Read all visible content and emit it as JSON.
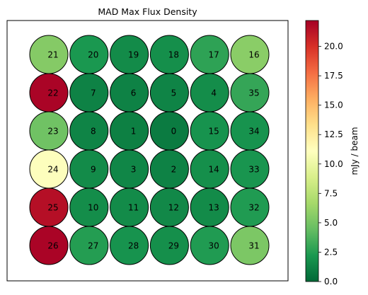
{
  "chart_data": {
    "type": "heatmap",
    "title": "MAD Max Flux Density",
    "colorbar": {
      "label": "mJy / beam",
      "range": [
        0.0,
        22.2
      ],
      "colormap": "RdYlGn_r",
      "ticks": [
        0.0,
        2.5,
        5.0,
        7.5,
        10.0,
        12.5,
        15.0,
        17.5,
        20.0
      ],
      "tick_labels": [
        "0.0",
        "2.5",
        "5.0",
        "7.5",
        "10.0",
        "12.5",
        "15.0",
        "17.5",
        "20.0"
      ]
    },
    "grid": {
      "rows": 6,
      "cols": 6
    },
    "beams": [
      {
        "label": "21",
        "row": 0,
        "col": 0,
        "value": 5.5
      },
      {
        "label": "20",
        "row": 0,
        "col": 1,
        "value": 2.2
      },
      {
        "label": "19",
        "row": 0,
        "col": 2,
        "value": 1.6
      },
      {
        "label": "18",
        "row": 0,
        "col": 3,
        "value": 1.8
      },
      {
        "label": "17",
        "row": 0,
        "col": 4,
        "value": 2.8
      },
      {
        "label": "16",
        "row": 0,
        "col": 5,
        "value": 5.7
      },
      {
        "label": "22",
        "row": 1,
        "col": 0,
        "value": 22.0
      },
      {
        "label": "7",
        "row": 1,
        "col": 1,
        "value": 1.2
      },
      {
        "label": "6",
        "row": 1,
        "col": 2,
        "value": 1.2
      },
      {
        "label": "5",
        "row": 1,
        "col": 3,
        "value": 1.3
      },
      {
        "label": "4",
        "row": 1,
        "col": 4,
        "value": 1.7
      },
      {
        "label": "35",
        "row": 1,
        "col": 5,
        "value": 3.0
      },
      {
        "label": "23",
        "row": 2,
        "col": 0,
        "value": 4.8
      },
      {
        "label": "8",
        "row": 2,
        "col": 1,
        "value": 1.3
      },
      {
        "label": "1",
        "row": 2,
        "col": 2,
        "value": 1.1
      },
      {
        "label": "0",
        "row": 2,
        "col": 3,
        "value": 0.9
      },
      {
        "label": "15",
        "row": 2,
        "col": 4,
        "value": 2.0
      },
      {
        "label": "34",
        "row": 2,
        "col": 5,
        "value": 2.0
      },
      {
        "label": "24",
        "row": 3,
        "col": 0,
        "value": 11.0
      },
      {
        "label": "9",
        "row": 3,
        "col": 1,
        "value": 1.6
      },
      {
        "label": "3",
        "row": 3,
        "col": 2,
        "value": 1.4
      },
      {
        "label": "2",
        "row": 3,
        "col": 3,
        "value": 1.2
      },
      {
        "label": "14",
        "row": 3,
        "col": 4,
        "value": 1.8
      },
      {
        "label": "33",
        "row": 3,
        "col": 5,
        "value": 2.1
      },
      {
        "label": "25",
        "row": 4,
        "col": 0,
        "value": 21.5
      },
      {
        "label": "10",
        "row": 4,
        "col": 1,
        "value": 1.7
      },
      {
        "label": "11",
        "row": 4,
        "col": 2,
        "value": 1.6
      },
      {
        "label": "12",
        "row": 4,
        "col": 3,
        "value": 1.5
      },
      {
        "label": "13",
        "row": 4,
        "col": 4,
        "value": 1.6
      },
      {
        "label": "32",
        "row": 4,
        "col": 5,
        "value": 2.4
      },
      {
        "label": "26",
        "row": 5,
        "col": 0,
        "value": 22.0
      },
      {
        "label": "27",
        "row": 5,
        "col": 1,
        "value": 2.5
      },
      {
        "label": "28",
        "row": 5,
        "col": 2,
        "value": 2.0
      },
      {
        "label": "29",
        "row": 5,
        "col": 3,
        "value": 1.8
      },
      {
        "label": "30",
        "row": 5,
        "col": 4,
        "value": 2.4
      },
      {
        "label": "31",
        "row": 5,
        "col": 5,
        "value": 5.2
      }
    ]
  }
}
